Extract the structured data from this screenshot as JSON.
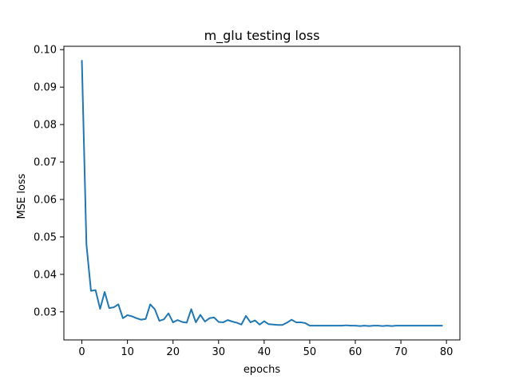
{
  "chart_data": {
    "type": "line",
    "title": "m_glu testing loss",
    "xlabel": "epochs",
    "ylabel": "MSE loss",
    "xlim": [
      -3.95,
      82.95
    ],
    "ylim": [
      0.0225,
      0.1009
    ],
    "xticks": [
      0,
      10,
      20,
      30,
      40,
      50,
      60,
      70,
      80
    ],
    "yticks": [
      0.03,
      0.04,
      0.05,
      0.06,
      0.07,
      0.08,
      0.09,
      0.1
    ],
    "xtick_labels": [
      "0",
      "10",
      "20",
      "30",
      "40",
      "50",
      "60",
      "70",
      "80"
    ],
    "ytick_labels": [
      "0.03",
      "0.04",
      "0.05",
      "0.06",
      "0.07",
      "0.08",
      "0.09",
      "0.10"
    ],
    "grid": false,
    "legend": "none",
    "series": [
      {
        "color": "#1f77b4",
        "x": [
          0,
          1,
          2,
          3,
          4,
          5,
          6,
          7,
          8,
          9,
          10,
          11,
          12,
          13,
          14,
          15,
          16,
          17,
          18,
          19,
          20,
          21,
          22,
          23,
          24,
          25,
          26,
          27,
          28,
          29,
          30,
          31,
          32,
          33,
          34,
          35,
          36,
          37,
          38,
          39,
          40,
          41,
          42,
          43,
          44,
          45,
          46,
          47,
          48,
          49,
          50,
          51,
          52,
          53,
          54,
          55,
          56,
          57,
          58,
          59,
          60,
          61,
          62,
          63,
          64,
          65,
          66,
          67,
          68,
          69,
          70,
          71,
          72,
          73,
          74,
          75,
          76,
          77,
          78,
          79
        ],
        "y": [
          0.097,
          0.048,
          0.0356,
          0.0358,
          0.0308,
          0.0353,
          0.031,
          0.0312,
          0.032,
          0.0283,
          0.0291,
          0.0288,
          0.0283,
          0.0279,
          0.0281,
          0.032,
          0.0307,
          0.0276,
          0.028,
          0.0296,
          0.0272,
          0.0278,
          0.0273,
          0.0271,
          0.0307,
          0.0272,
          0.0292,
          0.0274,
          0.0283,
          0.0285,
          0.0273,
          0.0272,
          0.0278,
          0.0274,
          0.0271,
          0.0266,
          0.0289,
          0.0272,
          0.0277,
          0.0266,
          0.0275,
          0.0267,
          0.0266,
          0.0265,
          0.0265,
          0.0271,
          0.0279,
          0.0272,
          0.0272,
          0.027,
          0.0263,
          0.0263,
          0.0263,
          0.0263,
          0.0263,
          0.0263,
          0.0263,
          0.0263,
          0.0264,
          0.0263,
          0.0263,
          0.0262,
          0.0263,
          0.0262,
          0.0263,
          0.0263,
          0.0262,
          0.0263,
          0.0262,
          0.0263,
          0.0263,
          0.0263,
          0.0263,
          0.0263,
          0.0263,
          0.0263,
          0.0263,
          0.0263,
          0.0263,
          0.0263
        ]
      }
    ]
  }
}
